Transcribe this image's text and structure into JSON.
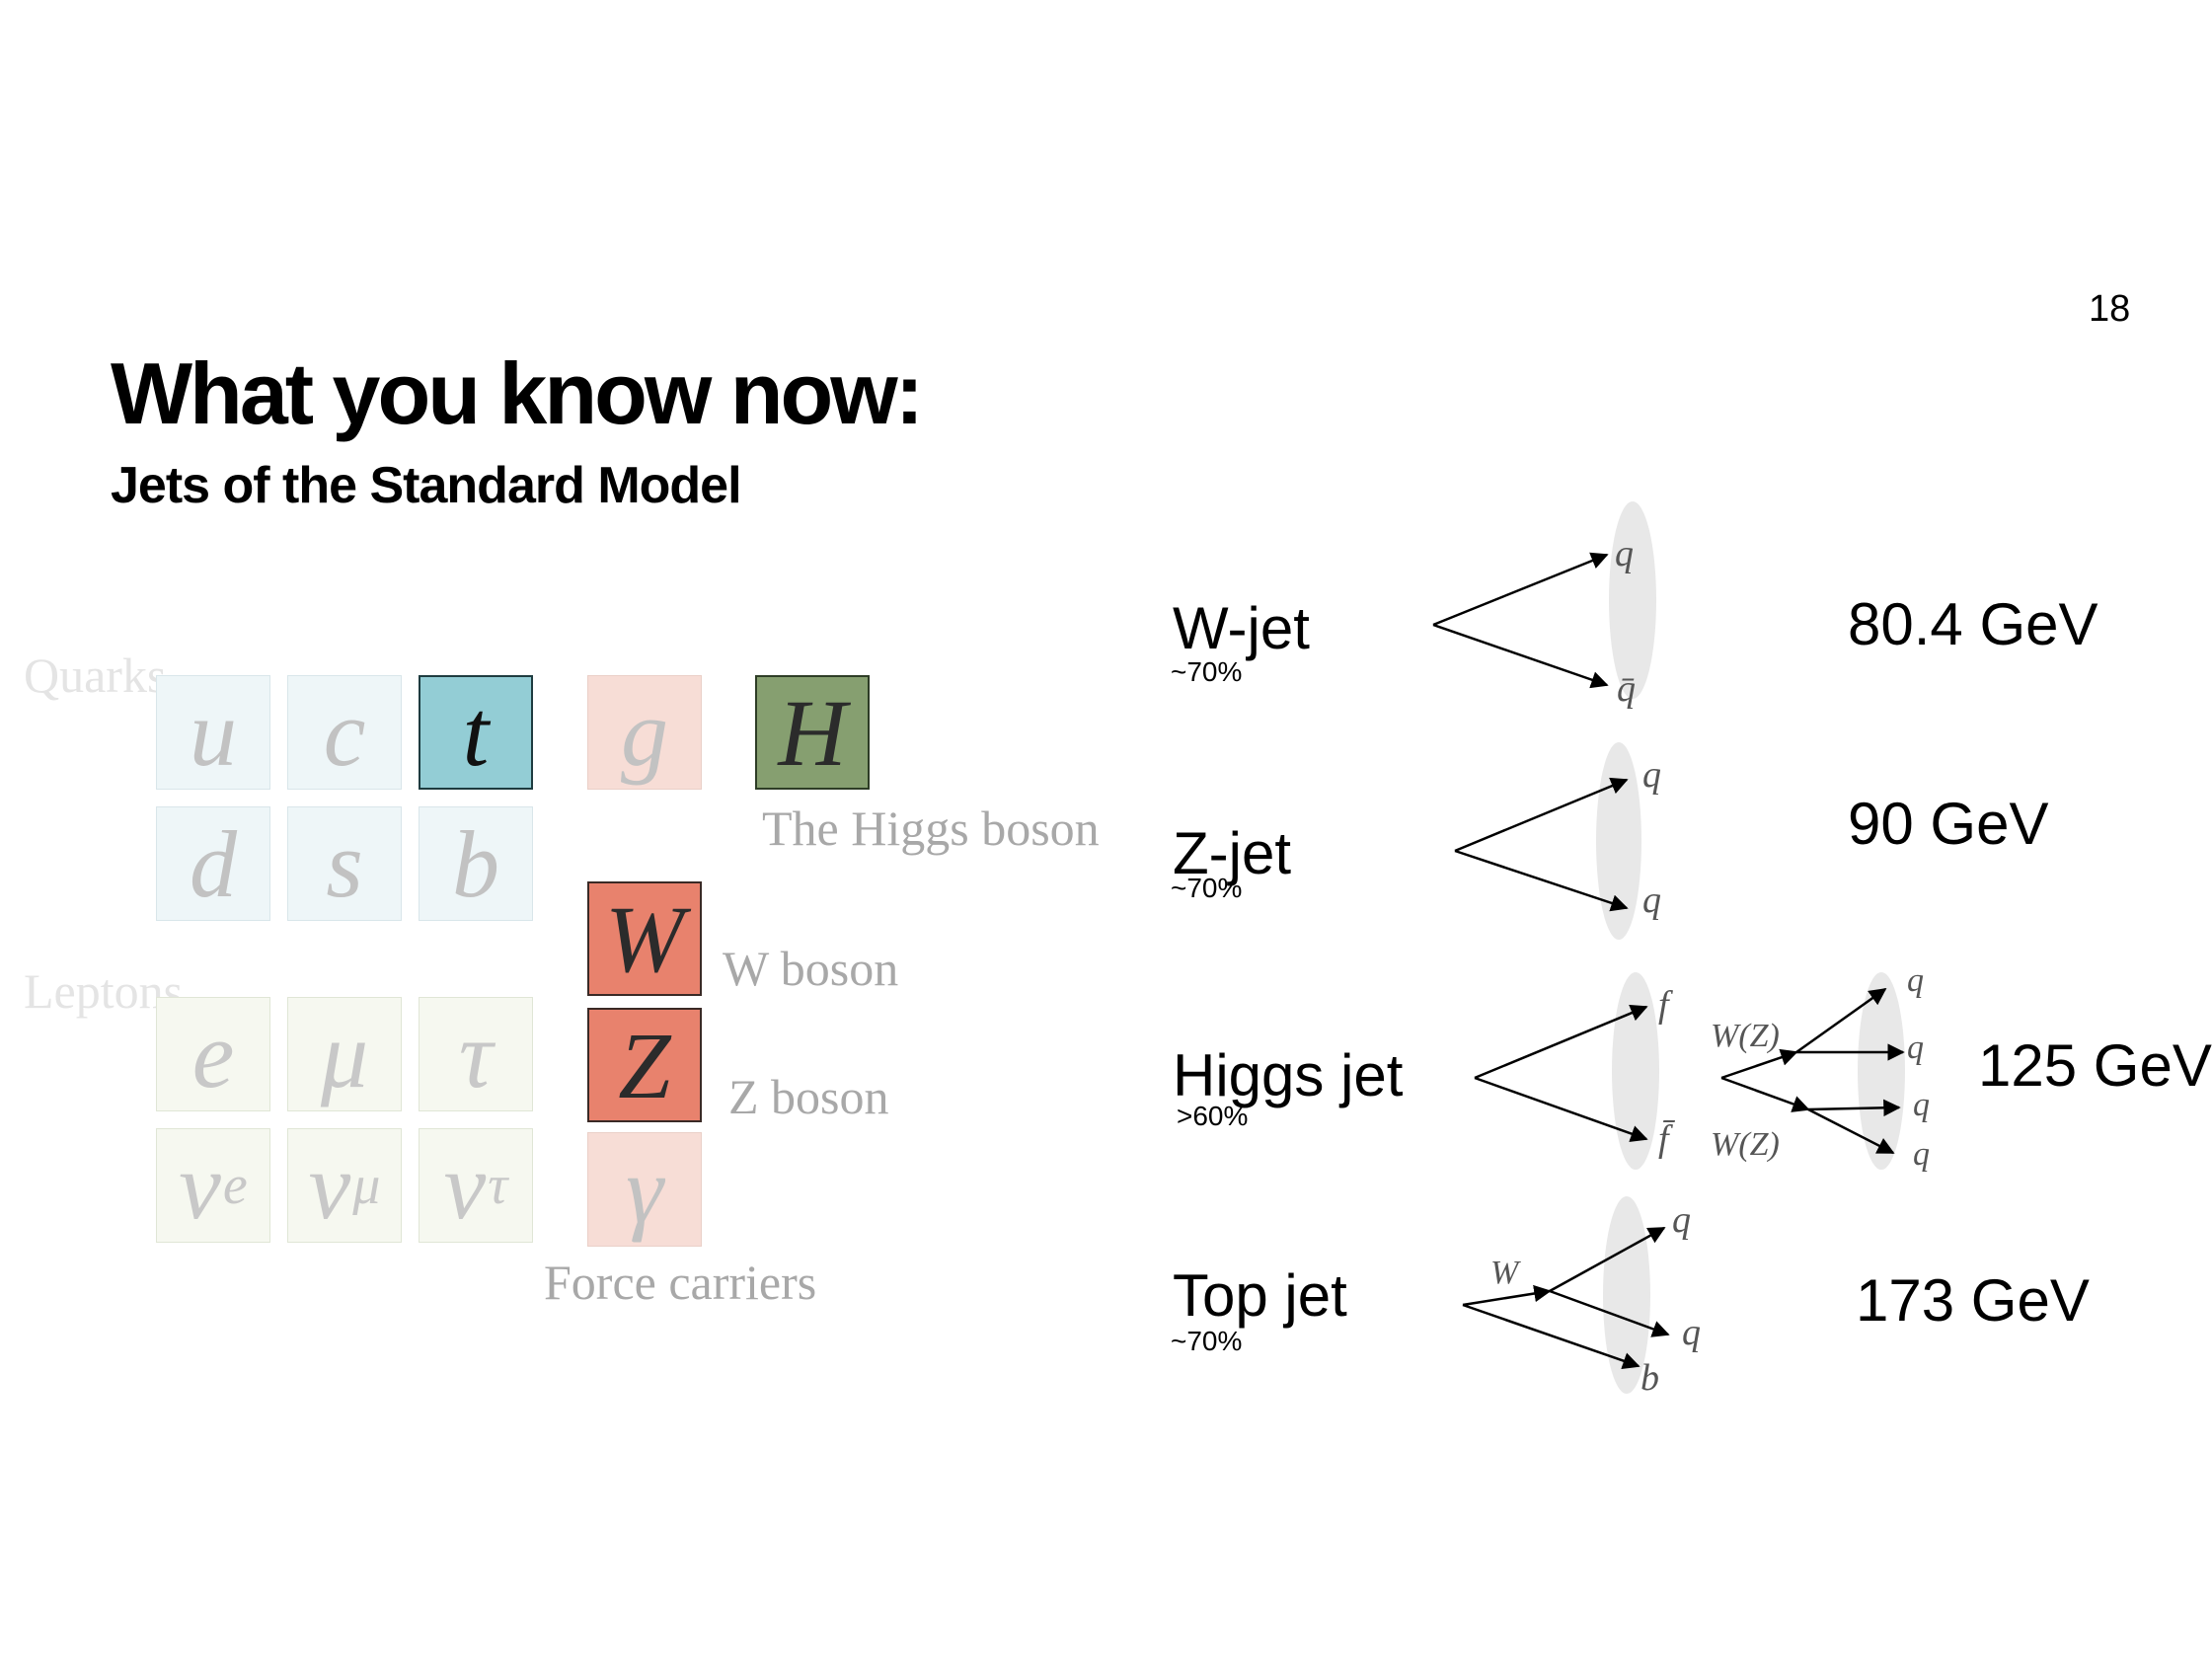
{
  "page_number": "18",
  "title": "What you know now:",
  "subtitle": "Jets of the Standard Model",
  "particle_table": {
    "quarks_label": "Quarks",
    "leptons_label": "Leptons",
    "quarks": [
      "u",
      "c",
      "t",
      "d",
      "s",
      "b"
    ],
    "leptons": {
      "charged": [
        "e",
        "μ",
        "τ"
      ],
      "neutrinos": [
        {
          "symbol": "ν",
          "sub": "e"
        },
        {
          "symbol": "ν",
          "sub": "μ"
        },
        {
          "symbol": "ν",
          "sub": "τ"
        }
      ]
    },
    "force_carriers": [
      "g",
      "W",
      "Z",
      "γ"
    ],
    "higgs": "H",
    "captions": {
      "higgs": "The Higgs boson",
      "w": "W boson",
      "z": "Z boson",
      "force_carriers": "Force carriers"
    },
    "colors": {
      "top": "#93cdd5",
      "higgs": "#869f70",
      "w_z": "#e8826d",
      "gluon_photon": "#f7ddd6"
    }
  },
  "jets": [
    {
      "name": "W-jet",
      "fraction": "~70%",
      "mass": "80.4 GeV",
      "products": [
        "q",
        "q̄"
      ]
    },
    {
      "name": "Z-jet",
      "fraction": "~70%",
      "mass": "90 GeV",
      "products": [
        "q",
        "q"
      ]
    },
    {
      "name": "Higgs jet",
      "fraction": ">60%",
      "mass": "125 GeV",
      "products": [
        "f",
        "f̄"
      ],
      "intermediates": [
        "W(Z)",
        "W(Z)"
      ],
      "final": [
        "q",
        "q",
        "q",
        "q"
      ]
    },
    {
      "name": "Top jet",
      "fraction": "~70%",
      "mass": "173 GeV",
      "intermediate": "W",
      "products": [
        "q",
        "q",
        "b"
      ]
    }
  ]
}
